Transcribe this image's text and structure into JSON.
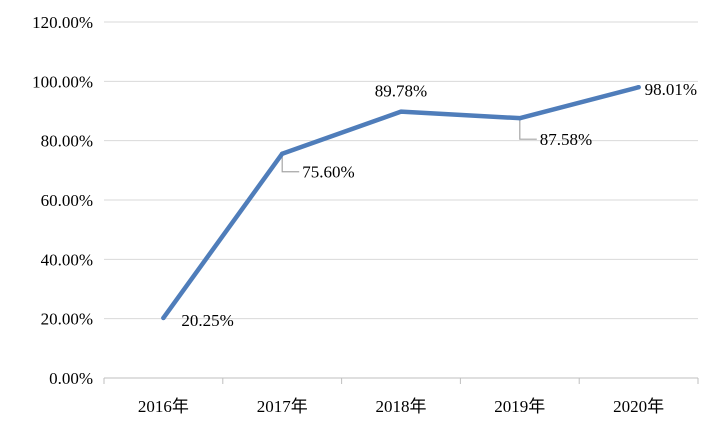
{
  "chart_data": {
    "type": "line",
    "title": "",
    "xlabel": "",
    "ylabel": "",
    "categories": [
      "2016年",
      "2017年",
      "2018年",
      "2019年",
      "2020年"
    ],
    "series": [
      {
        "values": [
          20.25,
          75.6,
          89.78,
          87.58,
          98.01
        ],
        "data_labels": [
          "20.25%",
          "75.60%",
          "89.78%",
          "87.58%",
          "98.01%"
        ]
      }
    ],
    "ylim": [
      0,
      120
    ],
    "y_ticks": [
      0,
      20,
      40,
      60,
      80,
      100,
      120
    ],
    "y_tick_labels": [
      "0.00%",
      "20.00%",
      "40.00%",
      "60.00%",
      "80.00%",
      "100.00%",
      "120.00%"
    ],
    "grid": true,
    "legend": "none",
    "line_color": "#4f7dba"
  }
}
